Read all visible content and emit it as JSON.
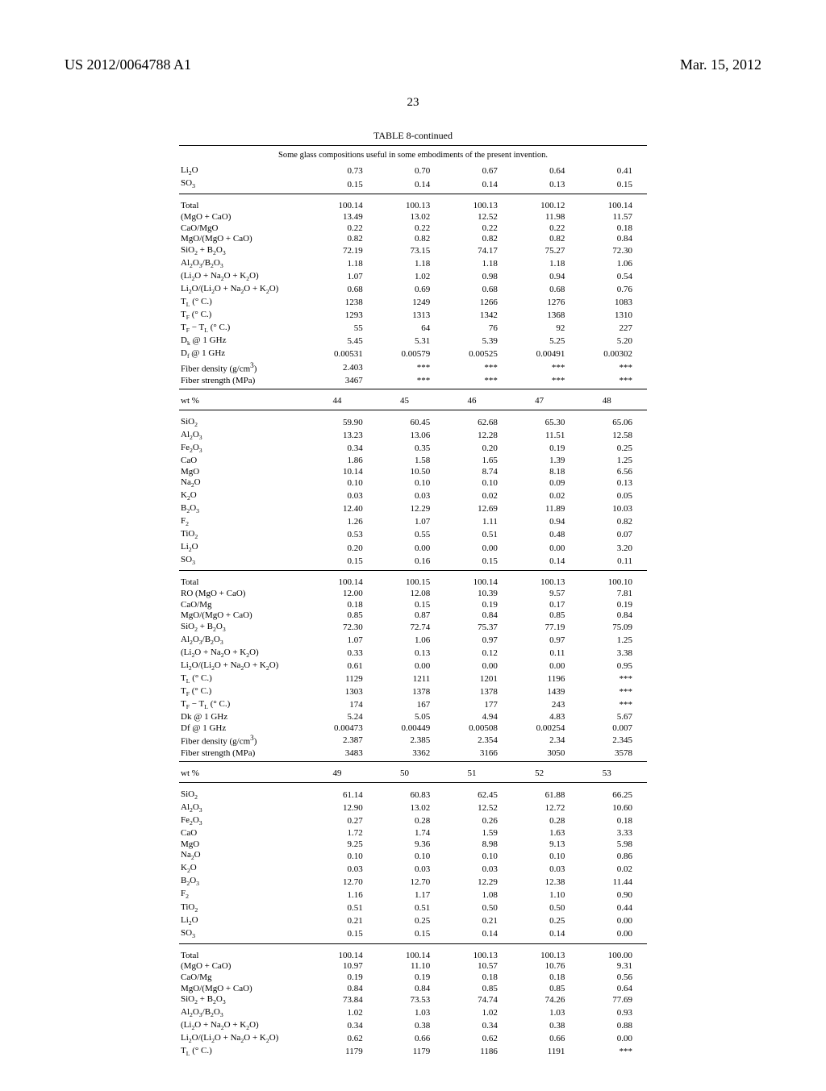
{
  "patent_number": "US 2012/0064788 A1",
  "pub_date": "Mar. 15, 2012",
  "page_number": "23",
  "table_title": "TABLE 8-continued",
  "table_subtitle": "Some glass compositions useful in some embodiments of the present invention.",
  "sections": [
    {
      "div_top": true,
      "rows": [
        {
          "label": "Li<sub>2</sub>O",
          "v": [
            "0.73",
            "0.70",
            "0.67",
            "0.64",
            "0.41"
          ]
        },
        {
          "label": "SO<sub>3</sub>",
          "v": [
            "0.15",
            "0.14",
            "0.14",
            "0.13",
            "0.15"
          ],
          "thin_bot": true
        }
      ]
    },
    {
      "rows": [
        {
          "label": "Total",
          "v": [
            "100.14",
            "100.13",
            "100.13",
            "100.12",
            "100.14"
          ],
          "space": true
        },
        {
          "label": "(MgO + CaO)",
          "v": [
            "13.49",
            "13.02",
            "12.52",
            "11.98",
            "11.57"
          ]
        },
        {
          "label": "CaO/MgO",
          "v": [
            "0.22",
            "0.22",
            "0.22",
            "0.22",
            "0.18"
          ]
        },
        {
          "label": "MgO/(MgO + CaO)",
          "v": [
            "0.82",
            "0.82",
            "0.82",
            "0.82",
            "0.84"
          ]
        },
        {
          "label": "SiO<sub>2</sub> + B<sub>2</sub>O<sub>3</sub>",
          "v": [
            "72.19",
            "73.15",
            "74.17",
            "75.27",
            "72.30"
          ]
        },
        {
          "label": "Al<sub>2</sub>O<sub>3</sub>/B<sub>2</sub>O<sub>3</sub>",
          "v": [
            "1.18",
            "1.18",
            "1.18",
            "1.18",
            "1.06"
          ]
        },
        {
          "label": "(Li<sub>2</sub>O + Na<sub>2</sub>O + K<sub>2</sub>O)",
          "v": [
            "1.07",
            "1.02",
            "0.98",
            "0.94",
            "0.54"
          ]
        },
        {
          "label": "Li<sub>2</sub>O/(Li<sub>2</sub>O + Na<sub>2</sub>O + K<sub>2</sub>O)",
          "v": [
            "0.68",
            "0.69",
            "0.68",
            "0.68",
            "0.76"
          ]
        },
        {
          "label": "T<sub>L</sub> (° C.)",
          "v": [
            "1238",
            "1249",
            "1266",
            "1276",
            "1083"
          ]
        },
        {
          "label": "T<sub>F</sub> (° C.)",
          "v": [
            "1293",
            "1313",
            "1342",
            "1368",
            "1310"
          ]
        },
        {
          "label": "T<sub>F</sub> − T<sub>L</sub> (° C.)",
          "v": [
            "55",
            "64",
            "76",
            "92",
            "227"
          ]
        },
        {
          "label": "D<sub>k</sub> @ 1 GHz",
          "v": [
            "5.45",
            "5.31",
            "5.39",
            "5.25",
            "5.20"
          ]
        },
        {
          "label": "D<sub>f</sub> @ 1 GHz",
          "v": [
            "0.00531",
            "0.00579",
            "0.00525",
            "0.00491",
            "0.00302"
          ]
        },
        {
          "label": "Fiber density (g/cm<sup>3</sup>)",
          "v": [
            "2.403",
            "***",
            "***",
            "***",
            "***"
          ]
        },
        {
          "label": "Fiber strength (MPa)",
          "v": [
            "3467",
            "***",
            "***",
            "***",
            "***"
          ],
          "thin_bot": true
        }
      ]
    },
    {
      "header": {
        "label": "wt %",
        "v": [
          "44",
          "45",
          "46",
          "47",
          "48"
        ]
      },
      "rows": [
        {
          "label": "SiO<sub>2</sub>",
          "v": [
            "59.90",
            "60.45",
            "62.68",
            "65.30",
            "65.06"
          ],
          "space": true
        },
        {
          "label": "Al<sub>2</sub>O<sub>3</sub>",
          "v": [
            "13.23",
            "13.06",
            "12.28",
            "11.51",
            "12.58"
          ]
        },
        {
          "label": "Fe<sub>2</sub>O<sub>3</sub>",
          "v": [
            "0.34",
            "0.35",
            "0.20",
            "0.19",
            "0.25"
          ]
        },
        {
          "label": "CaO",
          "v": [
            "1.86",
            "1.58",
            "1.65",
            "1.39",
            "1.25"
          ]
        },
        {
          "label": "MgO",
          "v": [
            "10.14",
            "10.50",
            "8.74",
            "8.18",
            "6.56"
          ]
        },
        {
          "label": "Na<sub>2</sub>O",
          "v": [
            "0.10",
            "0.10",
            "0.10",
            "0.09",
            "0.13"
          ]
        },
        {
          "label": "K<sub>2</sub>O",
          "v": [
            "0.03",
            "0.03",
            "0.02",
            "0.02",
            "0.05"
          ]
        },
        {
          "label": "B<sub>2</sub>O<sub>3</sub>",
          "v": [
            "12.40",
            "12.29",
            "12.69",
            "11.89",
            "10.03"
          ]
        },
        {
          "label": "F<sub>2</sub>",
          "v": [
            "1.26",
            "1.07",
            "1.11",
            "0.94",
            "0.82"
          ]
        },
        {
          "label": "TiO<sub>2</sub>",
          "v": [
            "0.53",
            "0.55",
            "0.51",
            "0.48",
            "0.07"
          ]
        },
        {
          "label": "Li<sub>2</sub>O",
          "v": [
            "0.20",
            "0.00",
            "0.00",
            "0.00",
            "3.20"
          ]
        },
        {
          "label": "SO<sub>3</sub>",
          "v": [
            "0.15",
            "0.16",
            "0.15",
            "0.14",
            "0.11"
          ],
          "thin_bot": true
        }
      ]
    },
    {
      "rows": [
        {
          "label": "Total",
          "v": [
            "100.14",
            "100.15",
            "100.14",
            "100.13",
            "100.10"
          ],
          "space": true
        },
        {
          "label": "RO (MgO + CaO)",
          "v": [
            "12.00",
            "12.08",
            "10.39",
            "9.57",
            "7.81"
          ]
        },
        {
          "label": "CaO/Mg",
          "v": [
            "0.18",
            "0.15",
            "0.19",
            "0.17",
            "0.19"
          ]
        },
        {
          "label": "MgO/(MgO + CaO)",
          "v": [
            "0.85",
            "0.87",
            "0.84",
            "0.85",
            "0.84"
          ]
        },
        {
          "label": "SiO<sub>2</sub> + B<sub>2</sub>O<sub>3</sub>",
          "v": [
            "72.30",
            "72.74",
            "75.37",
            "77.19",
            "75.09"
          ]
        },
        {
          "label": "Al<sub>2</sub>O<sub>3</sub>/B<sub>2</sub>O<sub>3</sub>",
          "v": [
            "1.07",
            "1.06",
            "0.97",
            "0.97",
            "1.25"
          ]
        },
        {
          "label": "(Li<sub>2</sub>O + Na<sub>2</sub>O + K<sub>2</sub>O)",
          "v": [
            "0.33",
            "0.13",
            "0.12",
            "0.11",
            "3.38"
          ]
        },
        {
          "label": "Li<sub>2</sub>O/(Li<sub>2</sub>O + Na<sub>2</sub>O + K<sub>2</sub>O)",
          "v": [
            "0.61",
            "0.00",
            "0.00",
            "0.00",
            "0.95"
          ]
        },
        {
          "label": "T<sub>L</sub> (° C.)",
          "v": [
            "1129",
            "1211",
            "1201",
            "1196",
            "***"
          ]
        },
        {
          "label": "T<sub>F</sub> (° C.)",
          "v": [
            "1303",
            "1378",
            "1378",
            "1439",
            "***"
          ]
        },
        {
          "label": "T<sub>F</sub> − T<sub>L</sub> (° C.)",
          "v": [
            "174",
            "167",
            "177",
            "243",
            "***"
          ]
        },
        {
          "label": "Dk @ 1 GHz",
          "v": [
            "5.24",
            "5.05",
            "4.94",
            "4.83",
            "5.67"
          ]
        },
        {
          "label": "Df @ 1 GHz",
          "v": [
            "0.00473",
            "0.00449",
            "0.00508",
            "0.00254",
            "0.007"
          ]
        },
        {
          "label": "Fiber density (g/cm<sup>3</sup>)",
          "v": [
            "2.387",
            "2.385",
            "2.354",
            "2.34",
            "2.345"
          ]
        },
        {
          "label": "Fiber strength (MPa)",
          "v": [
            "3483",
            "3362",
            "3166",
            "3050",
            "3578"
          ],
          "thin_bot": true
        }
      ]
    },
    {
      "header": {
        "label": "wt %",
        "v": [
          "49",
          "50",
          "51",
          "52",
          "53"
        ]
      },
      "rows": [
        {
          "label": "SiO<sub>2</sub>",
          "v": [
            "61.14",
            "60.83",
            "62.45",
            "61.88",
            "66.25"
          ],
          "space": true
        },
        {
          "label": "Al<sub>2</sub>O<sub>3</sub>",
          "v": [
            "12.90",
            "13.02",
            "12.52",
            "12.72",
            "10.60"
          ]
        },
        {
          "label": "Fe<sub>2</sub>O<sub>3</sub>",
          "v": [
            "0.27",
            "0.28",
            "0.26",
            "0.28",
            "0.18"
          ]
        },
        {
          "label": "CaO",
          "v": [
            "1.72",
            "1.74",
            "1.59",
            "1.63",
            "3.33"
          ]
        },
        {
          "label": "MgO",
          "v": [
            "9.25",
            "9.36",
            "8.98",
            "9.13",
            "5.98"
          ]
        },
        {
          "label": "Na<sub>2</sub>O",
          "v": [
            "0.10",
            "0.10",
            "0.10",
            "0.10",
            "0.86"
          ]
        },
        {
          "label": "K<sub>2</sub>O",
          "v": [
            "0.03",
            "0.03",
            "0.03",
            "0.03",
            "0.02"
          ]
        },
        {
          "label": "B<sub>2</sub>O<sub>3</sub>",
          "v": [
            "12.70",
            "12.70",
            "12.29",
            "12.38",
            "11.44"
          ]
        },
        {
          "label": "F<sub>2</sub>",
          "v": [
            "1.16",
            "1.17",
            "1.08",
            "1.10",
            "0.90"
          ]
        },
        {
          "label": "TiO<sub>2</sub>",
          "v": [
            "0.51",
            "0.51",
            "0.50",
            "0.50",
            "0.44"
          ]
        },
        {
          "label": "Li<sub>2</sub>O",
          "v": [
            "0.21",
            "0.25",
            "0.21",
            "0.25",
            "0.00"
          ]
        },
        {
          "label": "SO<sub>3</sub>",
          "v": [
            "0.15",
            "0.15",
            "0.14",
            "0.14",
            "0.00"
          ],
          "thin_bot": true
        }
      ]
    },
    {
      "rows": [
        {
          "label": "Total",
          "v": [
            "100.14",
            "100.14",
            "100.13",
            "100.13",
            "100.00"
          ],
          "space": true
        },
        {
          "label": "(MgO + CaO)",
          "v": [
            "10.97",
            "11.10",
            "10.57",
            "10.76",
            "9.31"
          ]
        },
        {
          "label": "CaO/Mg",
          "v": [
            "0.19",
            "0.19",
            "0.18",
            "0.18",
            "0.56"
          ]
        },
        {
          "label": "MgO/(MgO + CaO)",
          "v": [
            "0.84",
            "0.84",
            "0.85",
            "0.85",
            "0.64"
          ]
        },
        {
          "label": "SiO<sub>2</sub> + B<sub>2</sub>O<sub>3</sub>",
          "v": [
            "73.84",
            "73.53",
            "74.74",
            "74.26",
            "77.69"
          ]
        },
        {
          "label": "Al<sub>2</sub>O<sub>3</sub>/B<sub>2</sub>O<sub>3</sub>",
          "v": [
            "1.02",
            "1.03",
            "1.02",
            "1.03",
            "0.93"
          ]
        },
        {
          "label": "(Li<sub>2</sub>O + Na<sub>2</sub>O + K<sub>2</sub>O)",
          "v": [
            "0.34",
            "0.38",
            "0.34",
            "0.38",
            "0.88"
          ]
        },
        {
          "label": "Li<sub>2</sub>O/(Li<sub>2</sub>O + Na<sub>2</sub>O + K<sub>2</sub>O)",
          "v": [
            "0.62",
            "0.66",
            "0.62",
            "0.66",
            "0.00"
          ]
        },
        {
          "label": "T<sub>L</sub> (° C.)",
          "v": [
            "1179",
            "1179",
            "1186",
            "1191",
            "***"
          ]
        }
      ]
    }
  ]
}
